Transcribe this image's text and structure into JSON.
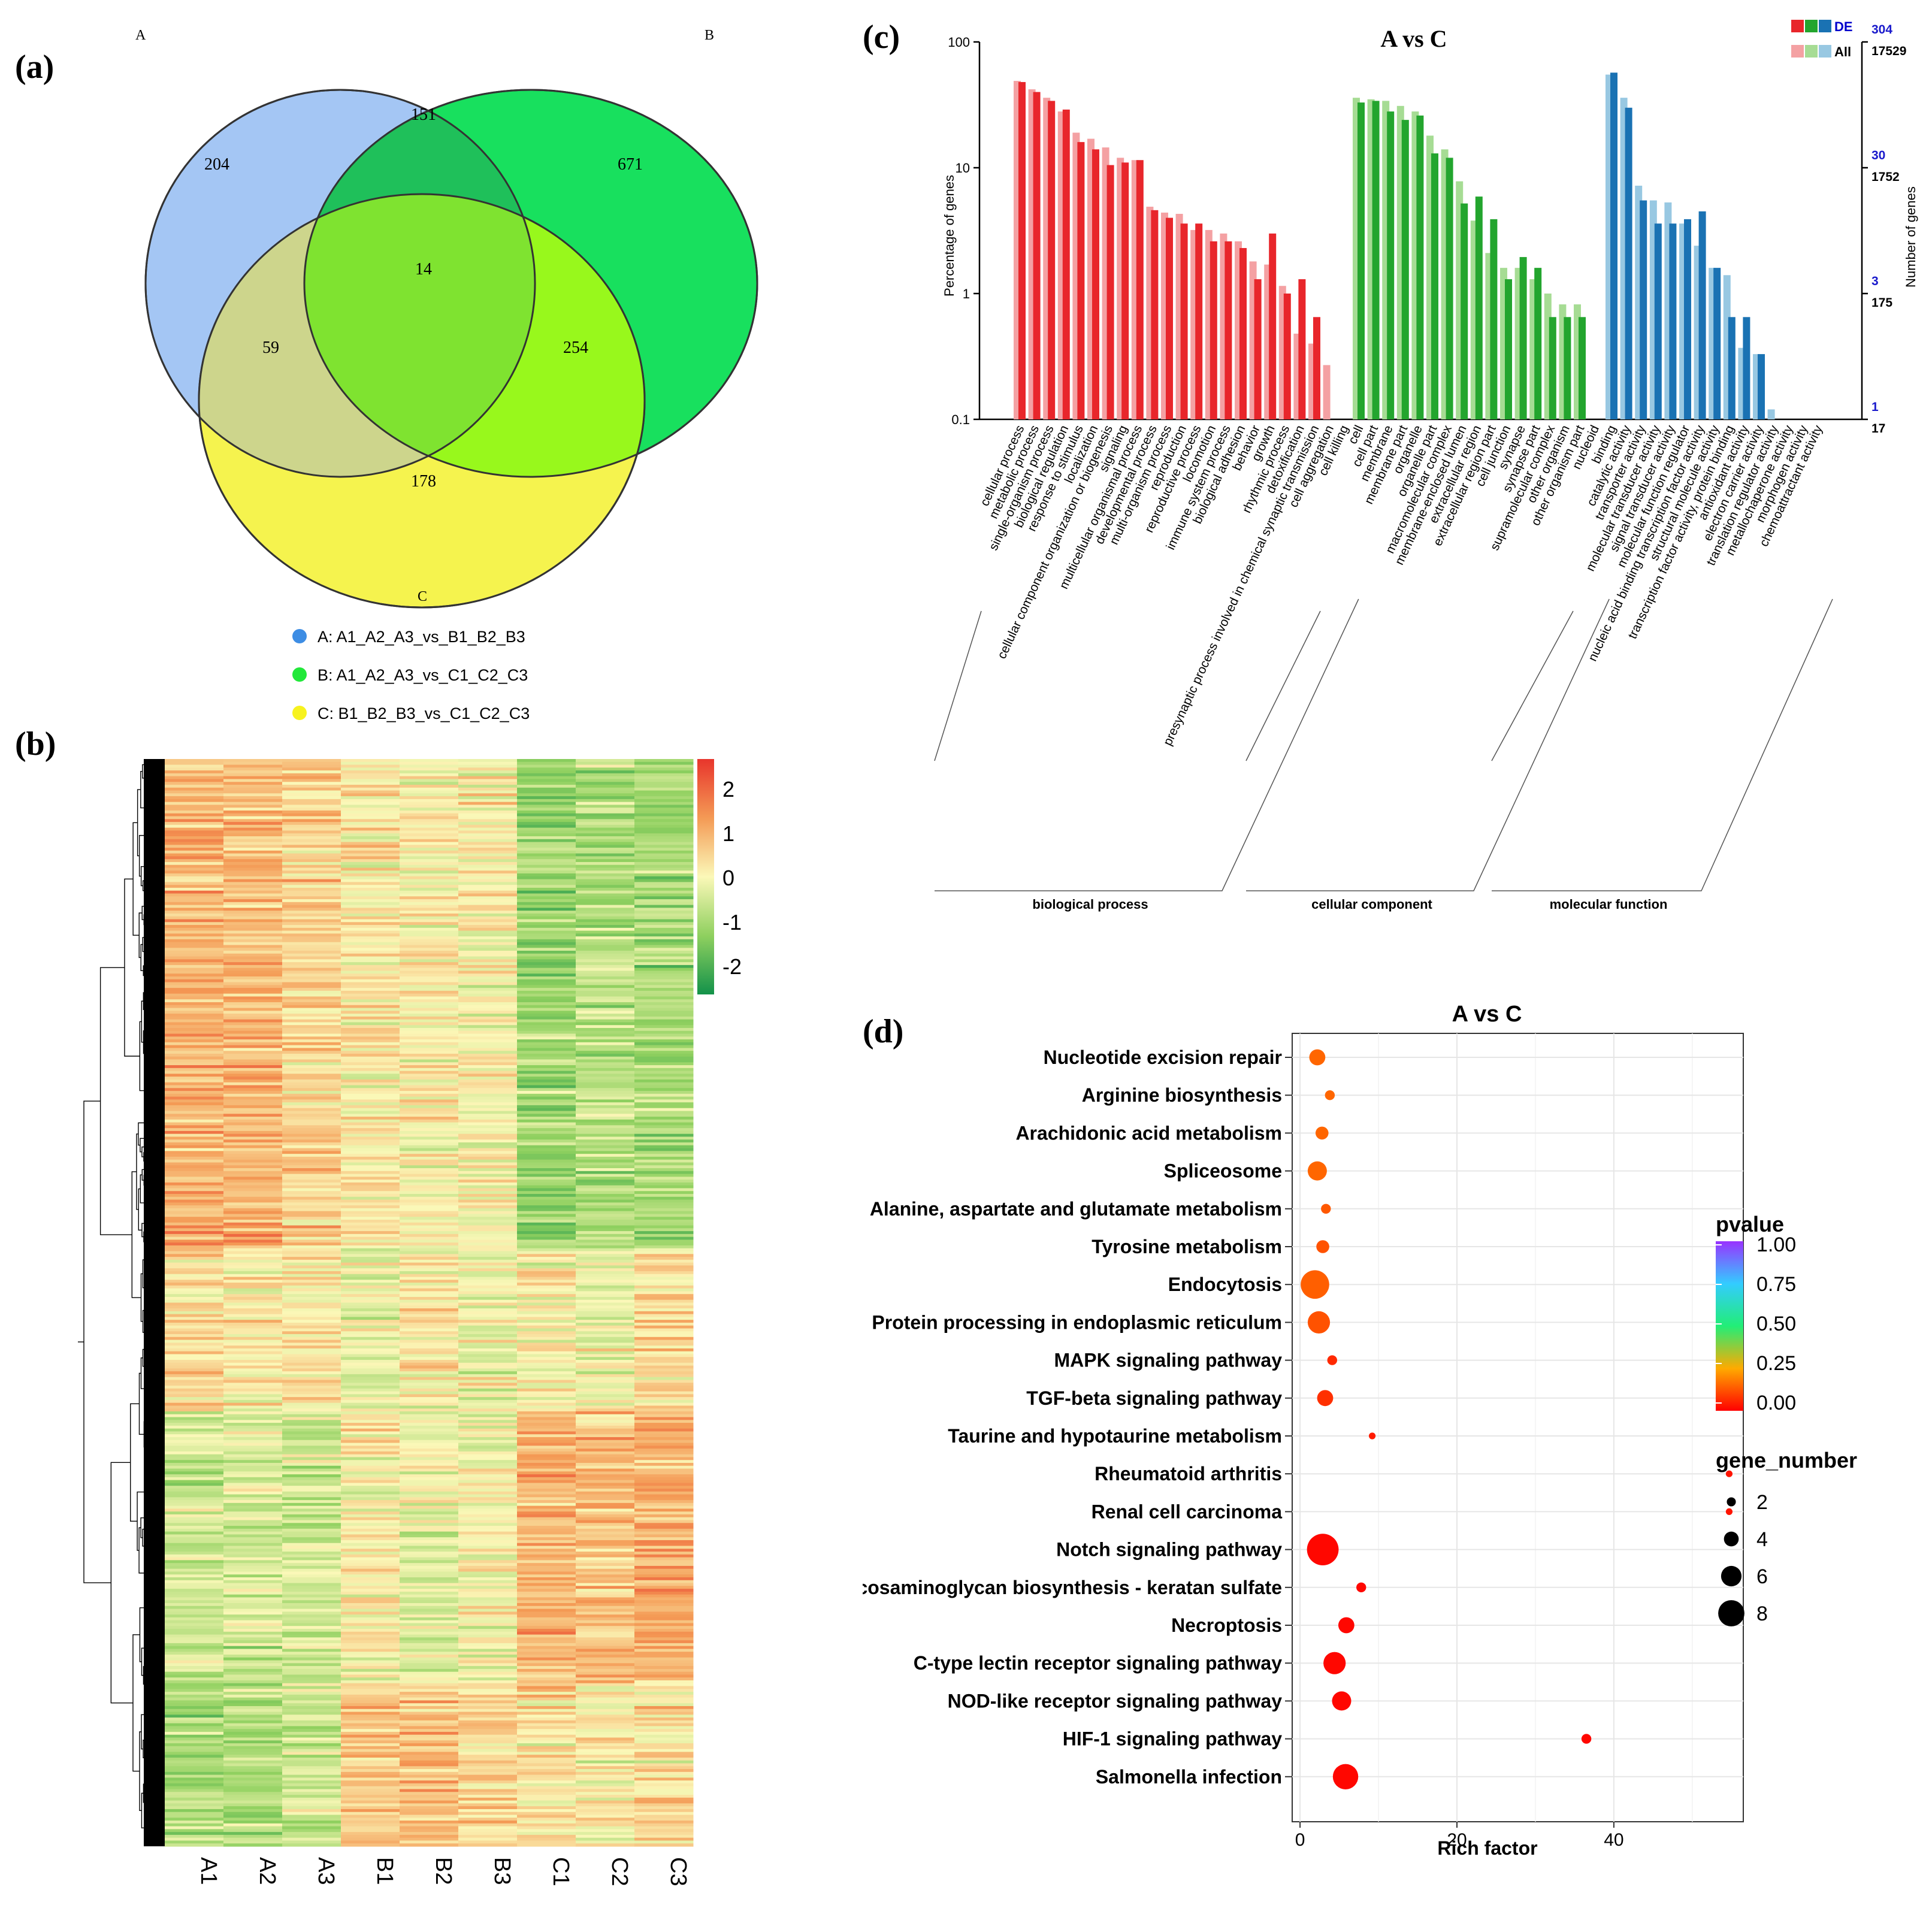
{
  "panel_labels": {
    "a": "(a)",
    "b": "(b)",
    "c": "(c)",
    "d": "(d)"
  },
  "colors": {
    "venn_a": "#8fb8f0",
    "venn_b": "#18e45a",
    "venn_c": "#f4f23c",
    "bp_de": "#e8262b",
    "bp_all": "#f4a1a3",
    "cc_de": "#23a52e",
    "cc_all": "#a6dc94",
    "mf_de": "#1a72b3",
    "mf_all": "#98c8e2"
  },
  "chart_data": [
    {
      "type": "venn",
      "set_names": [
        "A",
        "B",
        "C"
      ],
      "regions": {
        "A_only": 204,
        "B_only": 671,
        "C_only": 178,
        "AB": 151,
        "AC": 59,
        "BC": 254,
        "ABC": 14
      },
      "legend": [
        {
          "key": "A",
          "label": "A: A1_A2_A3_vs_B1_B2_B3",
          "color": "#3d8de4"
        },
        {
          "key": "B",
          "label": "B: A1_A2_A3_vs_C1_C2_C3",
          "color": "#22e83a"
        },
        {
          "key": "C",
          "label": "C: B1_B2_B3_vs_C1_C2_C3",
          "color": "#f7f21e"
        }
      ]
    },
    {
      "type": "heatmap",
      "columns": [
        "A1",
        "A2",
        "A3",
        "B1",
        "B2",
        "B3",
        "C1",
        "C2",
        "C3"
      ],
      "colorbar_ticks": [
        "2",
        "1",
        "0",
        "-1",
        "-2"
      ],
      "color_range": [
        -2.5,
        2.5
      ],
      "rows": 380
    },
    {
      "type": "bar",
      "title": "A vs C",
      "ylabel": "Percentage of genes",
      "y2label": "Number of genes",
      "yscale": "log",
      "ylim": [
        0.1,
        100
      ],
      "yticks": [
        "100",
        "10",
        "1",
        "0.1"
      ],
      "right_ticks_de": [
        "304",
        "30",
        "3",
        "1"
      ],
      "right_ticks_all": [
        "17529",
        "1752",
        "175",
        "17"
      ],
      "legend": [
        "DE",
        "All"
      ],
      "groups": [
        {
          "name": "biological process",
          "terms": [
            "cellular process",
            "metabolic process",
            "single-organism process",
            "biological regulation",
            "response to stimulus",
            "localization",
            "cellular component organization or biogenesis",
            "signaling",
            "multicellular organismal process",
            "developmental process",
            "multi-organism process",
            "reproduction",
            "reproductive process",
            "locomotion",
            "immune system process",
            "biological adhesion",
            "behavior",
            "growth",
            "rhythmic process",
            "detoxification",
            "presynaptic process involved in chemical synaptic transmission",
            "cell aggregation",
            "cell killing"
          ],
          "de": [
            48,
            40,
            34,
            29,
            16,
            14,
            10.5,
            11,
            11.5,
            4.6,
            4.0,
            3.6,
            3.6,
            2.6,
            2.6,
            2.3,
            1.3,
            3.0,
            1.0,
            1.3,
            0.65,
            0,
            0
          ],
          "all": [
            49,
            42,
            36,
            28,
            19,
            17,
            14.5,
            12,
            11.5,
            4.9,
            4.4,
            4.3,
            3.2,
            3.2,
            3.0,
            2.6,
            1.8,
            1.7,
            1.15,
            0.48,
            0.4,
            0.27,
            0
          ]
        },
        {
          "name": "cellular component",
          "terms": [
            "cell",
            "cell part",
            "membrane",
            "membrane part",
            "organelle",
            "organelle part",
            "macromolecular complex",
            "membrane-enclosed lumen",
            "extracellular region",
            "extracellular region part",
            "cell junction",
            "synapse",
            "synapse part",
            "supramolecular complex",
            "other organism",
            "other organism part",
            "nucleoid"
          ],
          "de": [
            33,
            34,
            28,
            24,
            26,
            13,
            12,
            5.2,
            5.9,
            3.9,
            1.3,
            1.95,
            1.6,
            0.65,
            0.65,
            0.65,
            0
          ],
          "all": [
            36,
            35,
            34,
            31,
            28,
            18,
            14,
            7.8,
            3.8,
            2.1,
            1.6,
            1.6,
            1.3,
            1.0,
            0.82,
            0.82,
            0
          ]
        },
        {
          "name": "molecular function",
          "terms": [
            "binding",
            "catalytic activity",
            "transporter activity",
            "molecular transducer activity",
            "signal transducer activity",
            "molecular function regulator",
            "nucleic acid binding transcription factor activity",
            "structural molecule activity",
            "transcription factor activity, protein binding",
            "antioxidant activity",
            "electron carrier activity",
            "translation regulator activity",
            "metallochaperone activity",
            "morphogen activity",
            "chemoattractant activity"
          ],
          "de": [
            57,
            30,
            5.5,
            3.6,
            3.6,
            3.9,
            4.5,
            1.6,
            0.65,
            0.65,
            0.33,
            0,
            0,
            0,
            0
          ],
          "all": [
            55,
            36,
            7.2,
            5.5,
            5.3,
            3.6,
            2.4,
            1.6,
            1.4,
            0.37,
            0.33,
            0.12,
            0,
            0,
            0
          ]
        }
      ]
    },
    {
      "type": "scatter",
      "title": "A vs C",
      "xlabel": "Rich factor",
      "xticks": [
        "0",
        "20",
        "40"
      ],
      "xlim": [
        -1,
        56.5
      ],
      "pathways": [
        "Nucleotide excision repair",
        "Arginine biosynthesis",
        "Arachidonic acid metabolism",
        "Spliceosome",
        "Alanine, aspartate and glutamate metabolism",
        "Tyrosine metabolism",
        "Endocytosis",
        "Protein processing in endoplasmic reticulum",
        "MAPK signaling pathway",
        "TGF-beta signaling pathway",
        "Taurine and hypotaurine metabolism",
        "Rheumatoid arthritis",
        "Renal cell carcinoma",
        "Notch signaling pathway",
        "Glycosaminoglycan biosynthesis - keratan sulfate",
        "Necroptosis",
        "C-type lectin receptor signaling pathway",
        "NOD-like receptor signaling pathway",
        "HIF-1 signaling pathway",
        "Salmonella infection"
      ],
      "rich_factor": [
        2.2,
        3.8,
        2.8,
        2.2,
        3.3,
        2.9,
        1.9,
        2.4,
        4.1,
        3.2,
        9.2,
        54.7,
        54.7,
        2.9,
        7.8,
        5.9,
        4.4,
        5.3,
        36.5,
        5.8
      ],
      "pvalue": [
        0.15,
        0.15,
        0.15,
        0.15,
        0.13,
        0.12,
        0.14,
        0.12,
        0.06,
        0.07,
        0.04,
        0.03,
        0.03,
        0.01,
        0.01,
        0.01,
        0.01,
        0.01,
        0.01,
        0.01
      ],
      "gene_number": [
        4,
        2,
        3,
        5,
        2,
        3,
        8,
        6,
        2,
        4,
        1,
        1,
        1,
        9,
        2,
        4,
        6,
        5,
        2,
        7
      ],
      "legend_pvalue": {
        "title": "pvalue",
        "ticks": [
          "1.00",
          "0.75",
          "0.50",
          "0.25",
          "0.00"
        ]
      },
      "legend_size": {
        "title": "gene_number",
        "ticks": [
          "2",
          "4",
          "6",
          "8"
        ]
      }
    }
  ]
}
